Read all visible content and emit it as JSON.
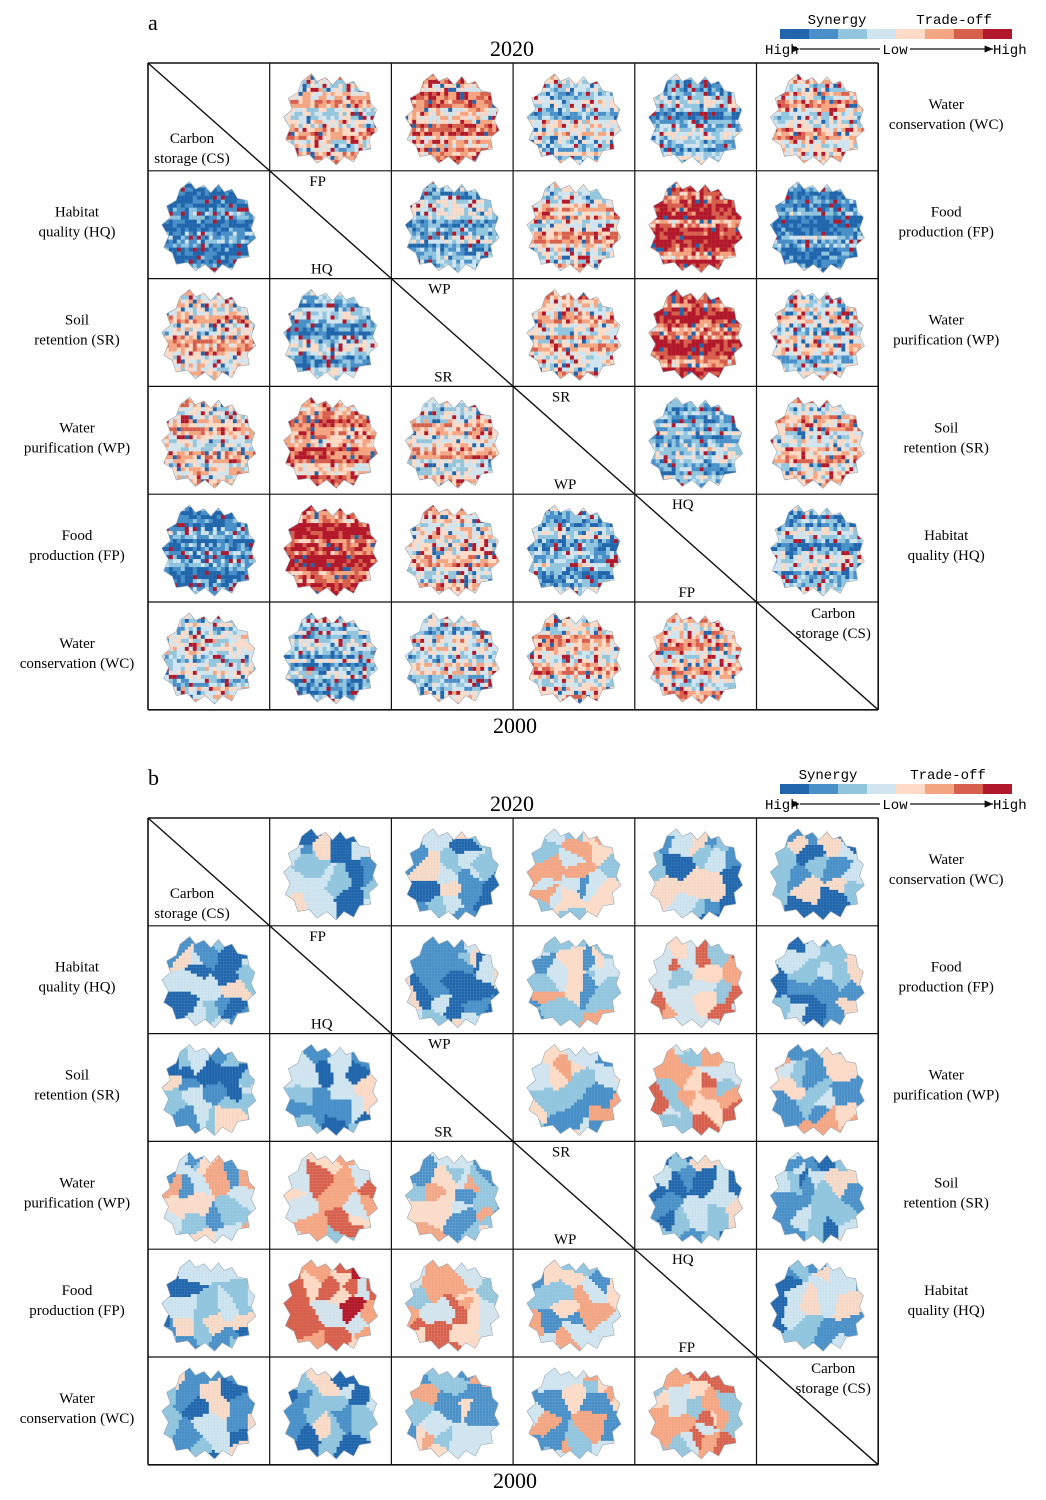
{
  "legend": {
    "synergy_label": "Synergy",
    "tradeoff_label": "Trade-off",
    "high_left": "High",
    "low_center": "Low",
    "high_right": "High",
    "colors": [
      "#2166ac",
      "#4a90c8",
      "#92c5de",
      "#d1e5f0",
      "#fddbc7",
      "#f4a582",
      "#d6604d",
      "#b2182b"
    ]
  },
  "panels": [
    {
      "id": "a",
      "panel_label": "a",
      "top_year": "2020",
      "bottom_year": "2000",
      "style": "pixel"
    },
    {
      "id": "b",
      "panel_label": "b",
      "top_year": "2020",
      "bottom_year": "2000",
      "style": "region"
    }
  ],
  "services": {
    "left_labels": [
      [
        "Habitat",
        "quality (HQ)"
      ],
      [
        "Soil",
        "retention (SR)"
      ],
      [
        "Water",
        "purification (WP)"
      ],
      [
        "Food",
        "production (FP)"
      ],
      [
        "Water",
        "conservation (WC)"
      ]
    ],
    "right_labels": [
      [
        "Water",
        "conservation (WC)"
      ],
      [
        "Food",
        "production (FP)"
      ],
      [
        "Water",
        "purification (WP)"
      ],
      [
        "Soil",
        "retention (SR)"
      ],
      [
        "Habitat",
        "quality (HQ)"
      ]
    ],
    "corner_top_left": [
      "Carbon",
      "storage (CS)"
    ],
    "corner_bottom_right": [
      "Carbon",
      "storage (CS)"
    ],
    "diagonal_upper": [
      "FP",
      "WP",
      "SR",
      "HQ"
    ],
    "diagonal_lower": [
      "HQ",
      "SR",
      "WP",
      "FP"
    ]
  }
}
